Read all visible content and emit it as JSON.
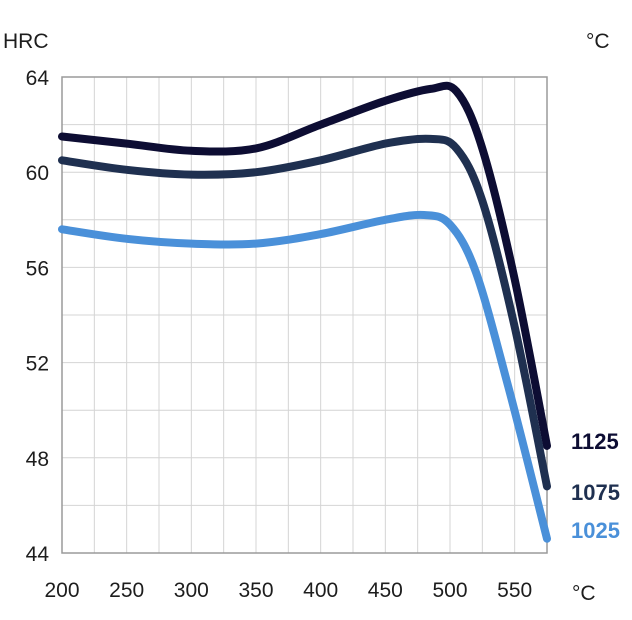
{
  "chart_data": {
    "type": "line",
    "ylabel": "HRC",
    "y_unit_top_right": "°C",
    "xlabel": "°C",
    "xlim": [
      200,
      575
    ],
    "ylim": [
      44,
      64
    ],
    "x_ticks": [
      200,
      250,
      300,
      350,
      400,
      450,
      500,
      550
    ],
    "y_ticks": [
      44,
      48,
      52,
      56,
      60,
      64
    ],
    "grid": true,
    "legend": "right",
    "series": [
      {
        "name": "1125",
        "color": "#0d0d33",
        "points": [
          [
            200,
            61.5
          ],
          [
            250,
            61.2
          ],
          [
            300,
            60.9
          ],
          [
            350,
            61.0
          ],
          [
            400,
            62.0
          ],
          [
            450,
            63.0
          ],
          [
            485,
            63.5
          ],
          [
            505,
            63.4
          ],
          [
            525,
            61.0
          ],
          [
            550,
            55.5
          ],
          [
            575,
            48.5
          ]
        ]
      },
      {
        "name": "1075",
        "color": "#1f3050",
        "points": [
          [
            200,
            60.5
          ],
          [
            250,
            60.1
          ],
          [
            300,
            59.9
          ],
          [
            350,
            60.0
          ],
          [
            400,
            60.5
          ],
          [
            450,
            61.2
          ],
          [
            485,
            61.4
          ],
          [
            505,
            61.0
          ],
          [
            525,
            58.8
          ],
          [
            550,
            53.5
          ],
          [
            575,
            46.8
          ]
        ]
      },
      {
        "name": "1025",
        "color": "#4a90d9",
        "points": [
          [
            200,
            57.6
          ],
          [
            250,
            57.2
          ],
          [
            300,
            57.0
          ],
          [
            350,
            57.0
          ],
          [
            400,
            57.4
          ],
          [
            450,
            58.0
          ],
          [
            480,
            58.2
          ],
          [
            500,
            57.8
          ],
          [
            520,
            55.8
          ],
          [
            545,
            51.0
          ],
          [
            575,
            44.6
          ]
        ]
      }
    ]
  }
}
